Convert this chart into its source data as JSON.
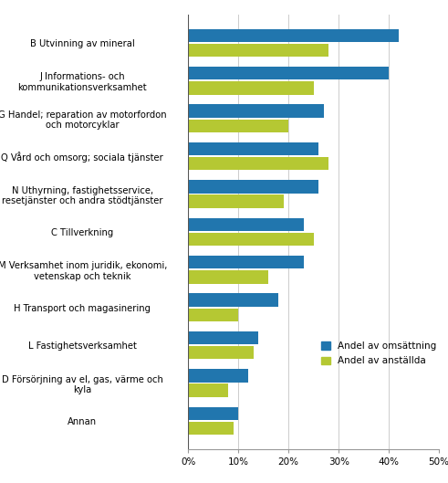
{
  "categories": [
    "B Utvinning av mineral",
    "J Informations- och\nkommunikationsverksamhet",
    "G Handel; reparation av motorfordon\noch motorcyklar",
    "Q Vård och omsorg; sociala tjänster",
    "N Uthyrning, fastighetsservice,\nresetjänster och andra stödtjänster",
    "C Tillverkning",
    "M Verksamhet inom juridik, ekonomi,\nvetenskap och teknik",
    "H Transport och magasinering",
    "L Fastighetsverksamhet",
    "D Försörjning av el, gas, värme och\nkyla",
    "Annan"
  ],
  "omsattning": [
    42,
    40,
    27,
    26,
    26,
    23,
    23,
    18,
    14,
    12,
    10
  ],
  "anstallda": [
    28,
    25,
    20,
    28,
    19,
    25,
    16,
    10,
    13,
    8,
    9
  ],
  "color_omsattning": "#2176ae",
  "color_anstallda": "#b5c833",
  "legend_omsattning": "Andel av omsättning",
  "legend_anstallda": "Andel av anställda",
  "xlim": [
    0,
    50
  ],
  "xtick_vals": [
    0,
    10,
    20,
    30,
    40,
    50
  ],
  "xtick_labels": [
    "0%",
    "10%",
    "20%",
    "30%",
    "40%",
    "50%"
  ],
  "bar_height": 0.35,
  "bar_gap": 0.04,
  "grid_color": "#cccccc",
  "background_color": "#ffffff",
  "label_fontsize": 7.2,
  "tick_fontsize": 7.5,
  "legend_fontsize": 7.5
}
